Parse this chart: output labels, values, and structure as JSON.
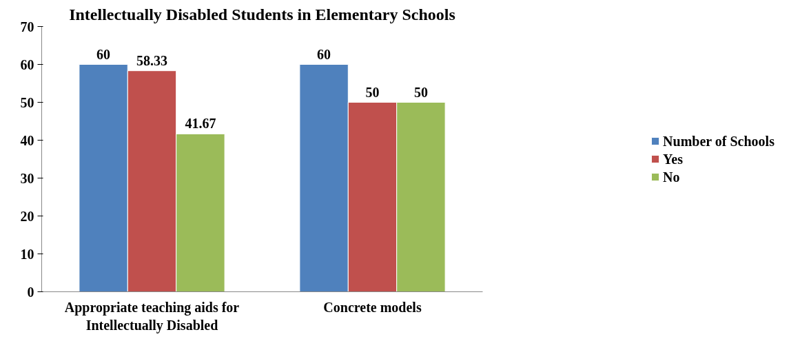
{
  "chart_data": {
    "type": "bar",
    "title": "Intellectually Disabled Students in Elementary Schools",
    "categories": [
      "Appropriate teaching aids for Intellectually Disabled",
      "Concrete models"
    ],
    "series": [
      {
        "name": "Number of Schools",
        "color": "#4f81bd",
        "values": [
          60,
          60
        ]
      },
      {
        "name": "Yes",
        "color": "#c0504d",
        "values": [
          58.33,
          50
        ]
      },
      {
        "name": "No",
        "color": "#9bbb59",
        "values": [
          41.67,
          50
        ]
      }
    ],
    "ylim": [
      0,
      70
    ],
    "yticks": [
      0,
      10,
      20,
      30,
      40,
      50,
      60,
      70
    ],
    "grid": false,
    "legend": "right",
    "data_labels": true
  }
}
